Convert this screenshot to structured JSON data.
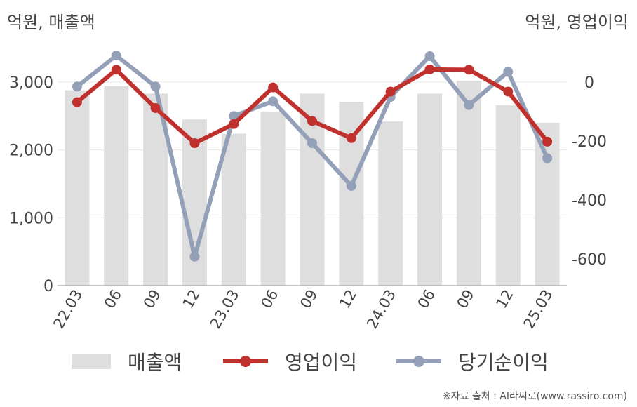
{
  "unit_left": "억원, 매출액",
  "unit_right": "억원, 영업이익",
  "source": "※자료 출처 : AI라씨로(www.rassiro.com)",
  "colors": {
    "bar": "#dedede",
    "operating": "#c0312d",
    "net": "#94a0b8",
    "grid": "#e8e8e8",
    "axis": "#b0b0b0"
  },
  "legend": {
    "revenue": "매출액",
    "operating": "영업이익",
    "net": "당기순이익"
  },
  "chart_data": {
    "type": "bar+line",
    "categories": [
      "22.03",
      "06",
      "09",
      "12",
      "23.03",
      "06",
      "09",
      "12",
      "24.03",
      "06",
      "09",
      "12",
      "25.03"
    ],
    "y_left": {
      "ticks": [
        0,
        1000,
        2000,
        3000
      ],
      "tick_labels": [
        "0",
        "1,000",
        "2,000",
        "3,000"
      ],
      "range": [
        0,
        3000
      ]
    },
    "y_right": {
      "ticks": [
        0,
        -200,
        -400,
        -600
      ],
      "tick_labels": [
        "0",
        "-200",
        "-400",
        "-600"
      ],
      "range": [
        -690,
        0
      ]
    },
    "series": [
      {
        "name": "매출액",
        "type": "bar",
        "axis": "left",
        "values": [
          2880,
          2940,
          2830,
          2450,
          2240,
          2560,
          2830,
          2710,
          2420,
          2830,
          3020,
          2660,
          2400
        ]
      },
      {
        "name": "영업이익",
        "type": "line",
        "axis": "right",
        "values": [
          -68,
          42,
          -88,
          -207,
          -142,
          -18,
          -132,
          -190,
          -32,
          43,
          42,
          -32,
          -202
        ]
      },
      {
        "name": "당기순이익",
        "type": "line",
        "axis": "right",
        "values": [
          -15,
          90,
          -15,
          -592,
          -115,
          -65,
          -207,
          -352,
          -50,
          88,
          -78,
          35,
          -258
        ]
      }
    ]
  }
}
